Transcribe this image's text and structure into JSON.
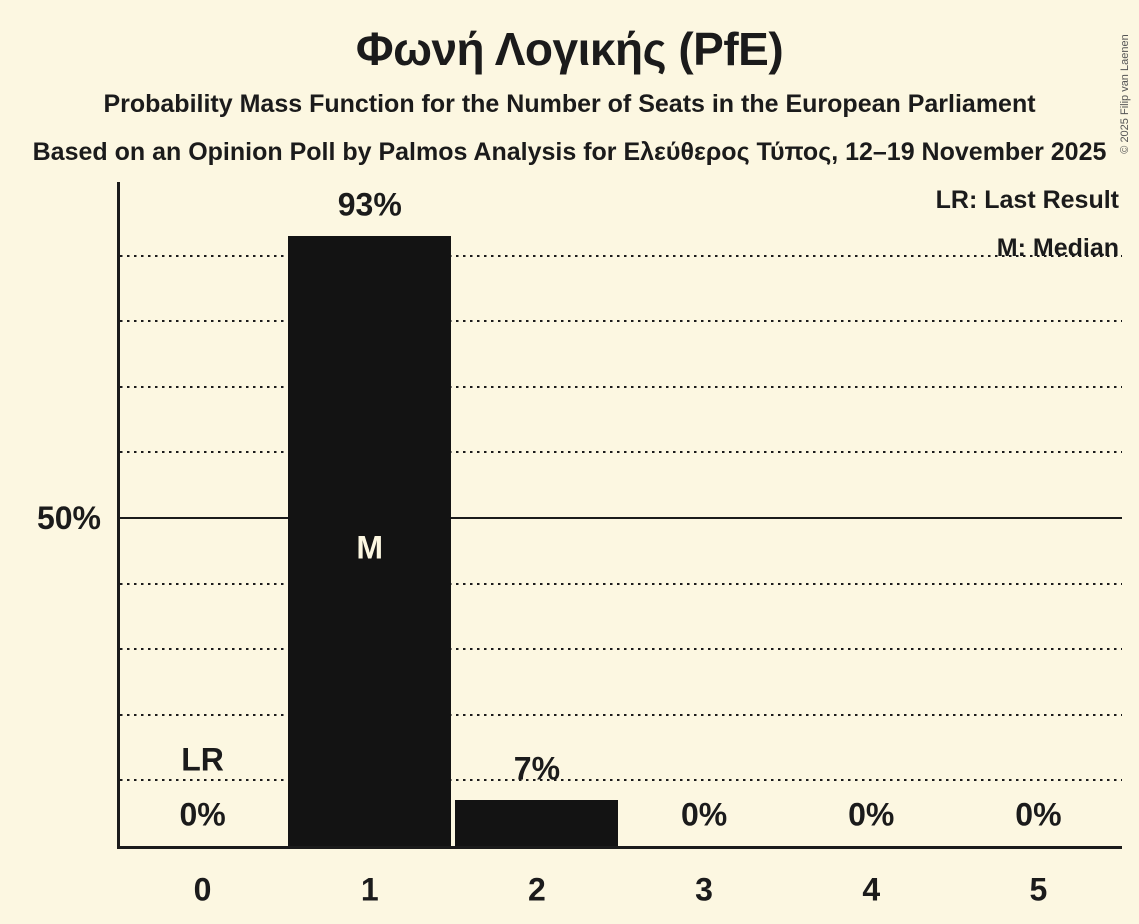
{
  "header": {
    "title": "Φωνή Λογικής (PfE)",
    "subtitle1": "Probability Mass Function for the Number of Seats in the European Parliament",
    "subtitle2": "Based on an Opinion Poll by Palmos Analysis for Ελεύθερος Τύπος, 12–19 November 2025",
    "copyright": "© 2025 Filip van Laenen"
  },
  "legend": {
    "lr": "LR: Last Result",
    "m": "M: Median"
  },
  "colors": {
    "background": "#fcf7e1",
    "bar": "#131313",
    "text": "#1b1b1b",
    "copyright_text": "#555555"
  },
  "chart_data": {
    "type": "bar",
    "title": "Φωνή Λογικής (PfE)",
    "categories": [
      "0",
      "1",
      "2",
      "3",
      "4",
      "5"
    ],
    "values": [
      0,
      93,
      7,
      0,
      0,
      0
    ],
    "value_labels": [
      "0%",
      "93%",
      "7%",
      "0%",
      "0%",
      "0%"
    ],
    "y_axis_label": "50%",
    "ylim": [
      0,
      100
    ],
    "gridlines_percent": [
      10,
      20,
      30,
      40,
      50,
      60,
      70,
      80,
      90
    ],
    "solid_gridline_percent": 50,
    "legend_position": "top-right",
    "legend_entries": [
      "LR: Last Result",
      "M: Median"
    ],
    "median_marker": "M",
    "median_seat_index": 1,
    "last_result_marker": "LR",
    "last_result_seat_index": 0
  }
}
